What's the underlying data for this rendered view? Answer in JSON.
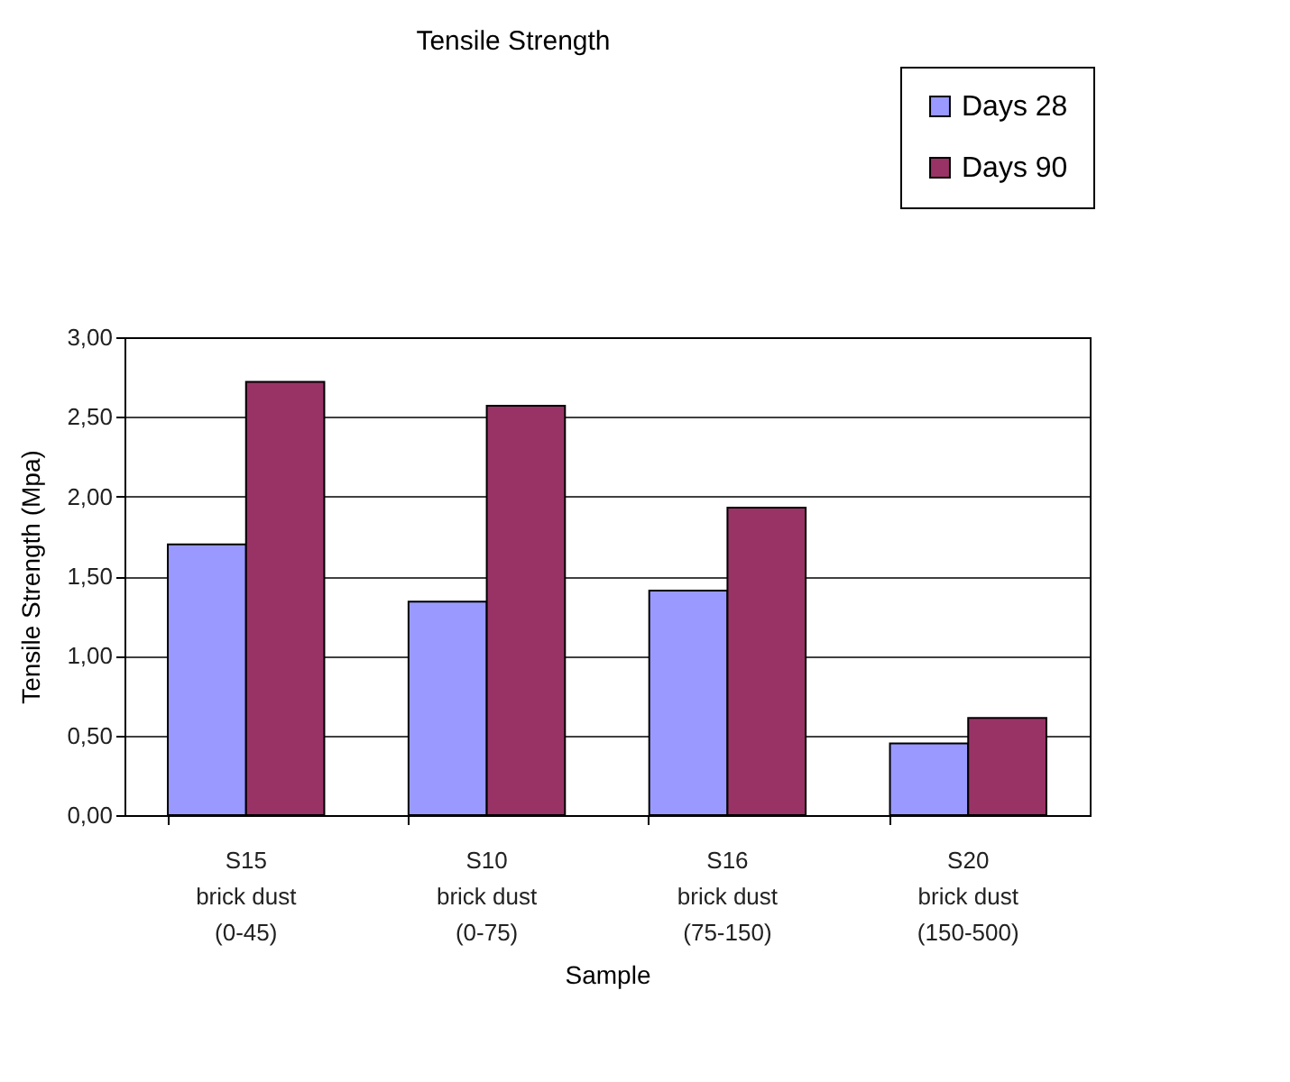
{
  "chart_data": {
    "type": "bar",
    "title": "Tensile Strength",
    "xlabel": "Sample",
    "ylabel": "Tensile Strength    (Mpa)",
    "categories": [
      "S15\nbrick dust\n(0-45)",
      "S10\nbrick dust\n(0-75)",
      "S16\nbrick dust\n(75-150)",
      "S20\nbrick dust\n(150-500)"
    ],
    "series": [
      {
        "name": "Days 28",
        "color": "#9999ff",
        "values": [
          1.7,
          1.34,
          1.41,
          0.45
        ]
      },
      {
        "name": "Days 90",
        "color": "#993366",
        "values": [
          2.72,
          2.57,
          1.93,
          0.61
        ]
      }
    ],
    "ylim": [
      0,
      3
    ],
    "yticks": [
      {
        "value": 0,
        "label": "0,00"
      },
      {
        "value": 0.5,
        "label": "0,50"
      },
      {
        "value": 1,
        "label": "1,00"
      },
      {
        "value": 1.5,
        "label": "1,50"
      },
      {
        "value": 2,
        "label": "2,00"
      },
      {
        "value": 2.5,
        "label": "2,50"
      },
      {
        "value": 3,
        "label": "3,00"
      }
    ],
    "grid": "y",
    "legend": "top right"
  }
}
